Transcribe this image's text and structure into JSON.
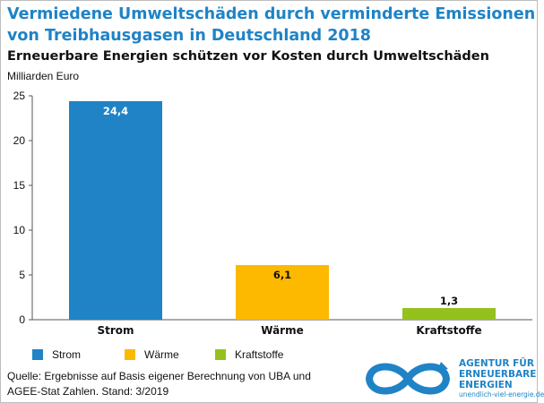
{
  "title": "Vermiedene Umweltschäden durch verminderte Emissionen von Treibhausgasen in Deutschland 2018",
  "subtitle": "Erneuerbare Energien schützen vor Kosten durch Umweltschäden",
  "source": {
    "line1": "Quelle: Ergebnisse auf Basis eigener Berechnung von UBA und",
    "line2": "AGEE-Stat Zahlen. Stand: 3/2019"
  },
  "logo": {
    "line1": "AGENTUR FÜR",
    "line2": "ERNEUERBARE",
    "line3": "ENERGIEN",
    "url": "unendlich-viel-energie.de",
    "color": "#1f83c6"
  },
  "chart_data": {
    "type": "bar",
    "ylabel": "Milliarden Euro",
    "categories": [
      "Strom",
      "Wärme",
      "Kraftstoffe"
    ],
    "values": [
      24.4,
      6.1,
      1.3
    ],
    "value_labels": [
      "24,4",
      "6,1",
      "1,3"
    ],
    "colors": [
      "#1f83c6",
      "#fcb900",
      "#95c11f"
    ],
    "ylim": [
      0,
      25
    ],
    "yticks": [
      0,
      5,
      10,
      15,
      20,
      25
    ],
    "grid": false,
    "legend": {
      "position": "bottom-left",
      "entries": [
        "Strom",
        "Wärme",
        "Kraftstoffe"
      ]
    }
  }
}
